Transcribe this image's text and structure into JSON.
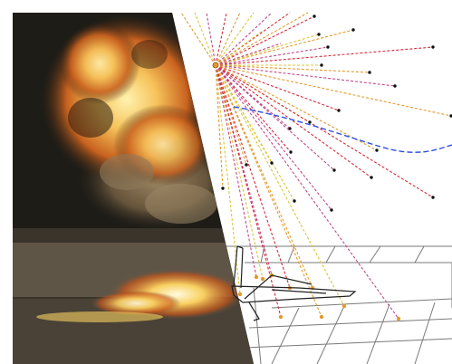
{
  "figure": {
    "description_free": true,
    "colors": {
      "background": "#ffffff",
      "photo_sky": "#24231d",
      "fireball_core": "#f6c35a",
      "smoke": "#6e5a3f",
      "ground": "#5f5546",
      "ray_red": "#d62b3c",
      "ray_orange": "#e59a2d",
      "ray_yellow": "#d8c73a",
      "ray_pink": "#c24a8a",
      "wake_curve": "#2e4fe0",
      "sensor_point": "#111111",
      "grid_line": "#7a7a7a",
      "airframe": "#222222"
    },
    "icons": [
      "explosion-source-icon",
      "aircraft-wireframe-icon"
    ]
  }
}
